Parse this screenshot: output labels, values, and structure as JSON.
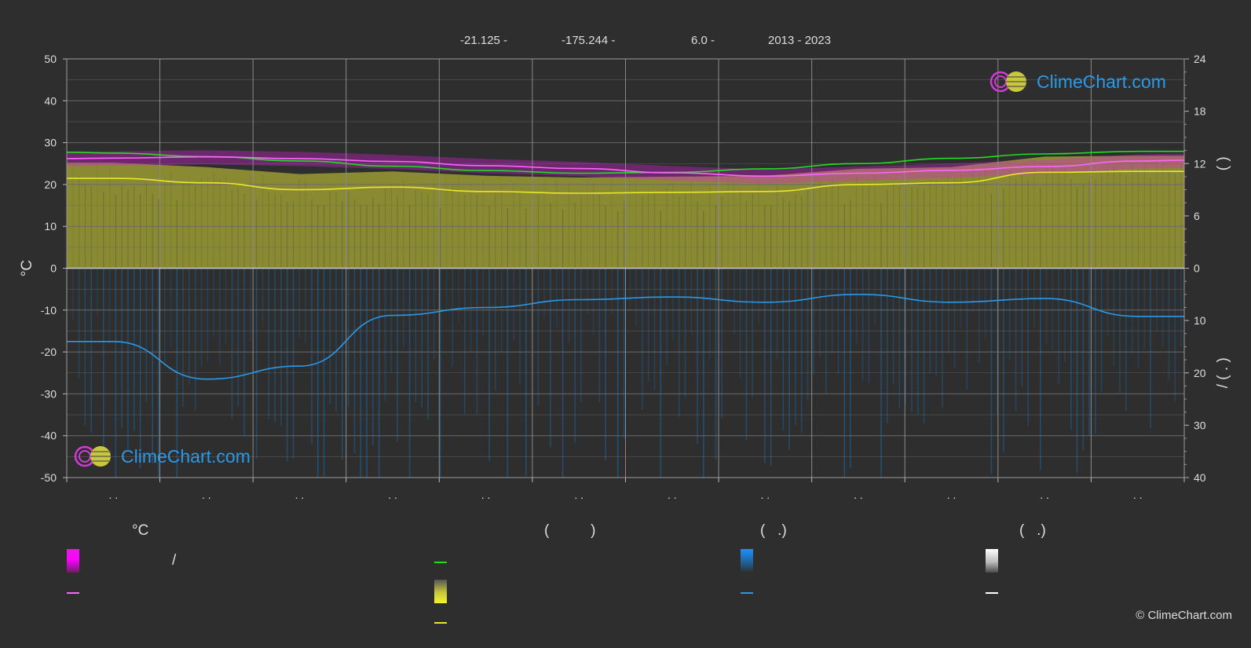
{
  "header": {
    "lat": "-21.125 -",
    "lon": "-175.244 -",
    "elev": "6.0 -",
    "years": "2013 - 2023"
  },
  "logo_text": "ClimeChart.com",
  "copyright": "© ClimeChart.com",
  "legend": {
    "col1_head": "°C",
    "col2_head": "(          )",
    "col3_head": "(   .)",
    "col4_head": "(   .)",
    "slash": "/"
  },
  "colors": {
    "background": "#2e2e2e",
    "grid": "#6a6a6a",
    "temp_band": "#e21ce2",
    "avg_temp": "#ff66ff",
    "daylight": "#22dd22",
    "sunshine_fill": "#9a9a34",
    "sunshine": "#e8e82a",
    "rain_fill": "#1f5e90",
    "rain": "#2a9ae8",
    "snow": "#ffffff",
    "logo": "#2a9ae8"
  },
  "chart_data": {
    "type": "line",
    "months": 12,
    "x_tick_labels": [
      ". .",
      ". .",
      ". .",
      ". .",
      ". .",
      ". .",
      ". .",
      ". .",
      ". .",
      ". .",
      ". .",
      ". ."
    ],
    "y_left": {
      "label": "°C",
      "range": [
        -50,
        50
      ],
      "ticks": [
        50,
        40,
        30,
        20,
        10,
        0,
        -10,
        -20,
        -30,
        -40,
        -50
      ]
    },
    "y_right_top": {
      "label": "(     )",
      "range": [
        0,
        24
      ],
      "ticks": [
        24,
        18,
        12,
        6,
        0
      ]
    },
    "y_right_bottom": {
      "label": "/     (  .  )",
      "range": [
        0,
        40
      ],
      "ticks": [
        0,
        10,
        20,
        30,
        40
      ]
    },
    "series": [
      {
        "key": "daylight",
        "axis": "hours",
        "x": [
          0,
          0.5,
          1.5,
          2.5,
          3.5,
          4.5,
          5.5,
          6.5,
          7.5,
          8.5,
          9.5,
          10.5,
          11.5,
          12
        ],
        "values": [
          13.3,
          13.2,
          12.8,
          12.3,
          11.7,
          11.2,
          10.9,
          11.0,
          11.4,
          12.0,
          12.6,
          13.1,
          13.4,
          13.4
        ]
      },
      {
        "key": "avg_temp",
        "axis": "temp",
        "x": [
          0,
          0.5,
          1.5,
          2.5,
          3.5,
          4.5,
          5.5,
          6.5,
          7.5,
          8.5,
          9.5,
          10.5,
          11.5,
          12
        ],
        "values": [
          26.2,
          26.3,
          26.6,
          26.2,
          25.5,
          24.5,
          23.8,
          22.8,
          22.0,
          22.7,
          23.4,
          24.3,
          25.6,
          25.8
        ]
      },
      {
        "key": "sunshine",
        "axis": "hours",
        "x": [
          0,
          0.5,
          1.5,
          2.5,
          3.5,
          4.5,
          5.5,
          6.5,
          7.5,
          8.5,
          9.5,
          10.5,
          11.5,
          12
        ],
        "values": [
          10.3,
          10.3,
          9.8,
          9.0,
          9.3,
          8.8,
          8.6,
          8.7,
          8.8,
          9.6,
          9.8,
          11.0,
          11.1,
          11.1
        ]
      },
      {
        "key": "rain",
        "axis": "rain",
        "x": [
          0,
          0.5,
          1.5,
          2.5,
          3.5,
          4.5,
          5.5,
          6.5,
          7.5,
          8.5,
          9.5,
          10.5,
          11.5,
          12
        ],
        "values": [
          14.0,
          14.0,
          21.2,
          18.7,
          9.0,
          7.5,
          6.0,
          5.5,
          6.5,
          5.0,
          6.5,
          5.8,
          9.2,
          9.2
        ]
      }
    ]
  }
}
